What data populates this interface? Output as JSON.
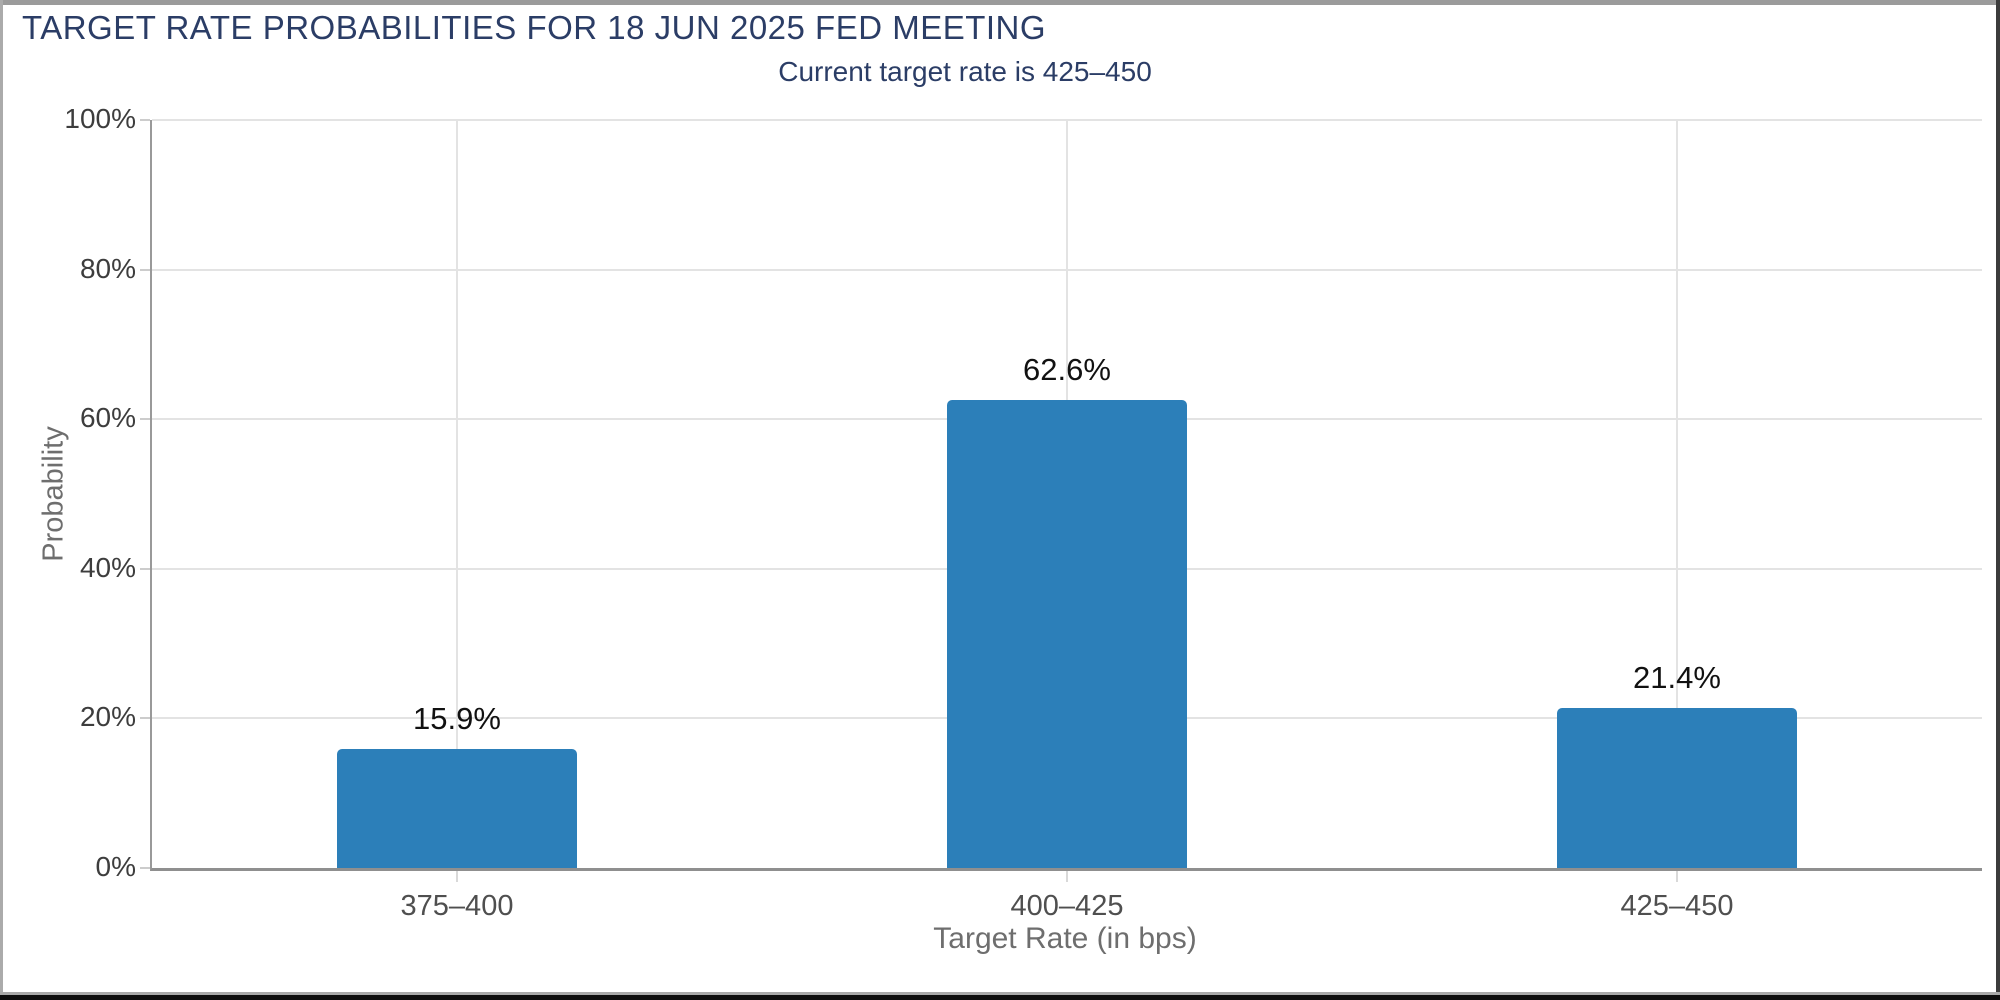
{
  "chart_data": {
    "type": "bar",
    "title": "TARGET RATE PROBABILITIES FOR 18 JUN 2025 FED MEETING",
    "subtitle": "Current target rate is 425–450",
    "categories": [
      "375–400",
      "400–425",
      "425–450"
    ],
    "values": [
      15.9,
      62.6,
      21.4
    ],
    "value_labels": [
      "15.9%",
      "62.6%",
      "21.4%"
    ],
    "xlabel": "Target Rate (in bps)",
    "ylabel": "Probability",
    "ylim": [
      0,
      100
    ],
    "yticks": [
      "0%",
      "20%",
      "40%",
      "60%",
      "80%",
      "100%"
    ],
    "grid": true,
    "legend": false,
    "bar_color": "#2c7fb9"
  },
  "colors": {
    "title_navy": "#2b3d66",
    "bar_blue": "#2c7fb9",
    "gridline": "#e3e3e3",
    "axis_line": "#999999",
    "tick_text": "#3d3d3d",
    "category_text": "#4f4f4f",
    "axis_title_text": "#6e6e6e",
    "value_label_text": "#111111",
    "frame_gray": "#9b9b9b",
    "frame_black": "#0c0c0c"
  }
}
